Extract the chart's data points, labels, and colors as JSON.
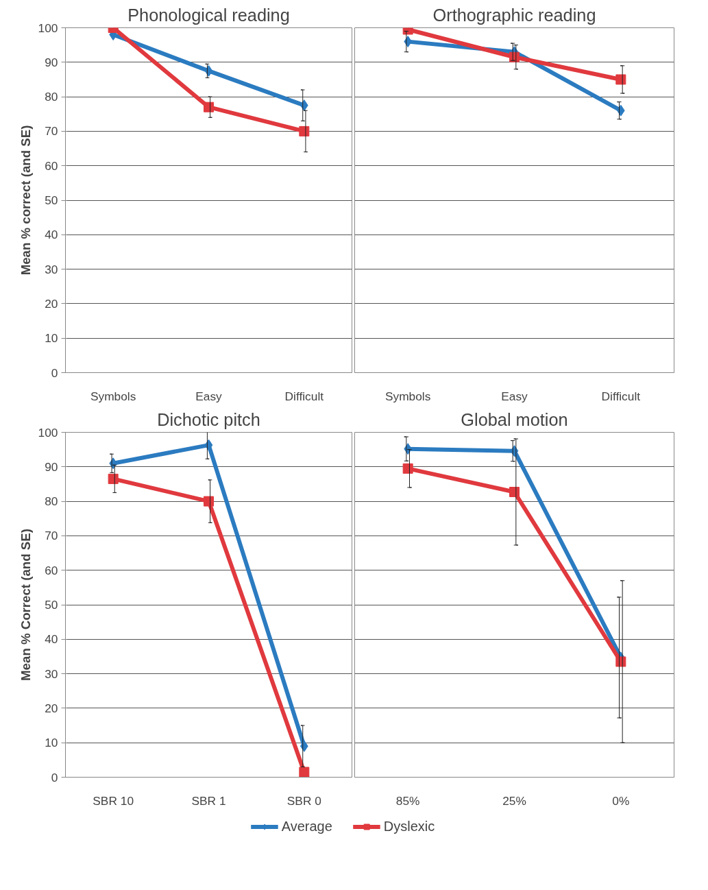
{
  "chart_data": [
    {
      "type": "line",
      "title": "Phonological reading",
      "ylabel": "Mean % correct (and SE)",
      "categories": [
        "Symbols",
        "Easy",
        "Difficult"
      ],
      "ylim": [
        0,
        100
      ],
      "yticks": [
        0,
        10,
        20,
        30,
        40,
        50,
        60,
        70,
        80,
        90,
        100
      ],
      "grid": "y",
      "legend": "bottom",
      "series": [
        {
          "name": "Average",
          "color": "#2b7bc0",
          "marker": "diamond",
          "values": [
            98,
            87.5,
            77.5
          ],
          "errors": [
            null,
            2,
            4.5
          ]
        },
        {
          "name": "Dyslexic",
          "color": "#e0393e",
          "marker": "square",
          "values": [
            100,
            77,
            70
          ],
          "errors": [
            null,
            3,
            6
          ]
        }
      ]
    },
    {
      "type": "line",
      "title": "Orthographic reading",
      "categories": [
        "Symbols",
        "Easy",
        "Difficult"
      ],
      "ylim": [
        0,
        100
      ],
      "yticks": [
        0,
        10,
        20,
        30,
        40,
        50,
        60,
        70,
        80,
        90,
        100
      ],
      "grid": "y",
      "tick_labels": "x",
      "legend": "bottom",
      "series": [
        {
          "name": "Average",
          "color": "#2b7bc0",
          "marker": "diamond",
          "values": [
            96,
            93,
            76
          ],
          "errors": [
            3,
            2.5,
            2.5
          ]
        },
        {
          "name": "Dyslexic",
          "color": "#e0393e",
          "marker": "square",
          "values": [
            99.5,
            91.5,
            85
          ],
          "errors": [
            null,
            3.5,
            4
          ]
        }
      ]
    },
    {
      "type": "line",
      "title": "Dichotic pitch",
      "ylabel": "Mean % Correct (and SE)",
      "categories": [
        "SBR 10",
        "SBR 1",
        "SBR 0"
      ],
      "ylim": [
        0,
        100
      ],
      "yticks": [
        0,
        10,
        20,
        30,
        40,
        50,
        60,
        70,
        80,
        90,
        100
      ],
      "grid": "y",
      "legend": "bottom",
      "series": [
        {
          "name": "Average",
          "color": "#2b7bc0",
          "marker": "diamond",
          "values": [
            91,
            96.3,
            9
          ],
          "errors": [
            2.7,
            4,
            6
          ]
        },
        {
          "name": "Dyslexic",
          "color": "#e0393e",
          "marker": "square",
          "values": [
            86.5,
            80,
            1.5
          ],
          "errors": [
            4,
            6.2,
            null
          ]
        }
      ]
    },
    {
      "type": "line",
      "title": "Global motion",
      "categories": [
        "85%",
        "25%",
        "0%"
      ],
      "ylim": [
        0,
        100
      ],
      "yticks": [
        0,
        10,
        20,
        30,
        40,
        50,
        60,
        70,
        80,
        90,
        100
      ],
      "grid": "y",
      "tick_labels": "x",
      "legend": "bottom",
      "series": [
        {
          "name": "Average",
          "color": "#2b7bc0",
          "marker": "diamond",
          "values": [
            95.2,
            94.6,
            34.7
          ],
          "errors": [
            3.5,
            3,
            17.5
          ]
        },
        {
          "name": "Dyslexic",
          "color": "#e0393e",
          "marker": "square",
          "values": [
            89.5,
            82.7,
            33.5
          ],
          "errors": [
            5.5,
            15.4,
            23.5
          ]
        }
      ]
    }
  ]
}
